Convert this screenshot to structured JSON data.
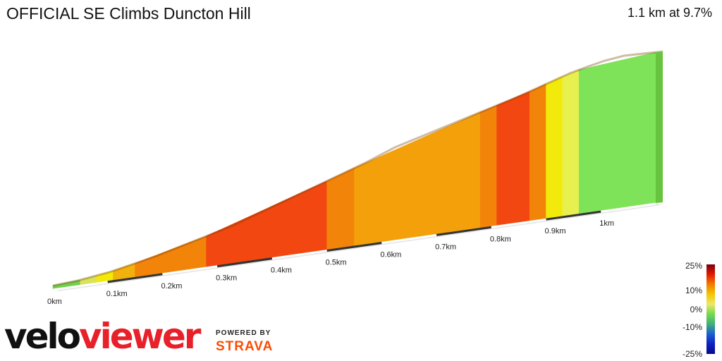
{
  "header": {
    "title": "OFFICIAL SE Climbs Duncton Hill",
    "summary": "1.1 km at 9.7%"
  },
  "chart_data": {
    "type": "area",
    "title": "OFFICIAL SE Climbs Duncton Hill",
    "xlabel": "",
    "ylabel": "",
    "x_unit": "km",
    "x_ticks": [
      "0km",
      "0.1km",
      "0.2km",
      "0.3km",
      "0.4km",
      "0.5km",
      "0.6km",
      "0.7km",
      "0.8km",
      "0.9km",
      "1km"
    ],
    "xlim": [
      0,
      1.1
    ],
    "segments": [
      {
        "start": 0.0,
        "end": 0.05,
        "color": "#6fd04a"
      },
      {
        "start": 0.05,
        "end": 0.08,
        "color": "#d8e35a"
      },
      {
        "start": 0.08,
        "end": 0.11,
        "color": "#f2ea0a"
      },
      {
        "start": 0.11,
        "end": 0.15,
        "color": "#f1b20d"
      },
      {
        "start": 0.15,
        "end": 0.28,
        "color": "#f3840a"
      },
      {
        "start": 0.28,
        "end": 0.5,
        "color": "#f24710"
      },
      {
        "start": 0.5,
        "end": 0.55,
        "color": "#f3840a"
      },
      {
        "start": 0.55,
        "end": 0.78,
        "color": "#f3a00a"
      },
      {
        "start": 0.78,
        "end": 0.81,
        "color": "#f3840a"
      },
      {
        "start": 0.81,
        "end": 0.87,
        "color": "#f24710"
      },
      {
        "start": 0.87,
        "end": 0.9,
        "color": "#f3840a"
      },
      {
        "start": 0.9,
        "end": 0.93,
        "color": "#f2ea0a"
      },
      {
        "start": 0.93,
        "end": 0.96,
        "color": "#e8f050"
      },
      {
        "start": 0.96,
        "end": 1.1,
        "color": "#7fe35a"
      }
    ],
    "gradient_legend": {
      "labels": [
        "25%",
        "10%",
        "0%",
        "-10%",
        "-25%"
      ],
      "colors": [
        "#7a0010",
        "#e21a00",
        "#f27d00",
        "#f2c800",
        "#ece86a",
        "#74d94e",
        "#3fb07a",
        "#1b5fd0",
        "#1020c0",
        "#040a8a"
      ]
    }
  },
  "branding": {
    "logo_part1": "velo",
    "logo_part2": "viewer",
    "powered_by": "POWERED BY",
    "strava": "STRAVA"
  }
}
